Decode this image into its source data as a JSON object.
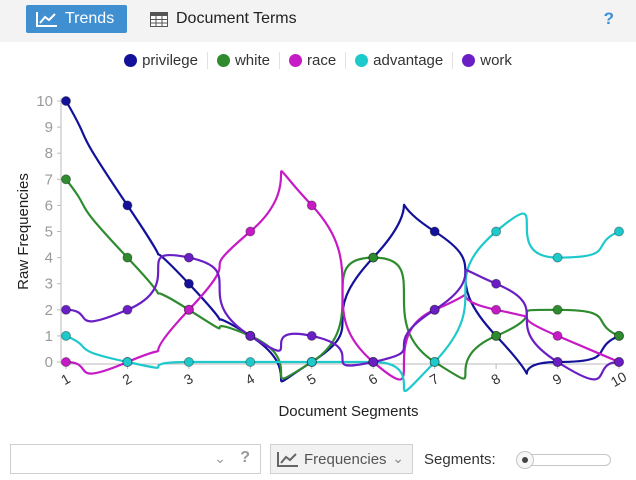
{
  "toolbar": {
    "trends_label": "Trends",
    "terms_label": "Document Terms",
    "help_label": "?",
    "trends_icon": "line-chart-icon",
    "terms_icon": "table-icon"
  },
  "chart_data": {
    "type": "line",
    "title": "",
    "xlabel": "Document Segments",
    "ylabel": "Raw Frequencies",
    "x": [
      1,
      2,
      3,
      4,
      5,
      6,
      7,
      8,
      9,
      10
    ],
    "ylim": [
      0,
      10
    ],
    "yticks": [
      0,
      1,
      2,
      3,
      4,
      5,
      6,
      7,
      8,
      9,
      10
    ],
    "smooth": true,
    "legend_position": "top-center",
    "series": [
      {
        "name": "privilege",
        "color": "#13119a",
        "values": [
          10,
          6,
          3,
          1,
          0,
          4,
          5,
          1,
          0,
          1
        ]
      },
      {
        "name": "white",
        "color": "#2e8b2e",
        "values": [
          7,
          4,
          2,
          1,
          0,
          4,
          0,
          1,
          2,
          1
        ]
      },
      {
        "name": "race",
        "color": "#c71ac7",
        "values": [
          0,
          0,
          2,
          5,
          6,
          0,
          2,
          2,
          1,
          0
        ]
      },
      {
        "name": "advantage",
        "color": "#1ec9cc",
        "values": [
          1,
          0,
          0,
          0,
          0,
          0,
          0,
          5,
          4,
          5
        ]
      },
      {
        "name": "work",
        "color": "#6a1fc4",
        "values": [
          2,
          2,
          4,
          1,
          1,
          0,
          2,
          3,
          0,
          0
        ]
      }
    ]
  },
  "bottom": {
    "frequencies_label": "Frequencies",
    "segments_label": "Segments:",
    "combo_help": "?",
    "combo_chevron": "chevron-down-icon",
    "freq_icon": "line-chart-icon"
  }
}
